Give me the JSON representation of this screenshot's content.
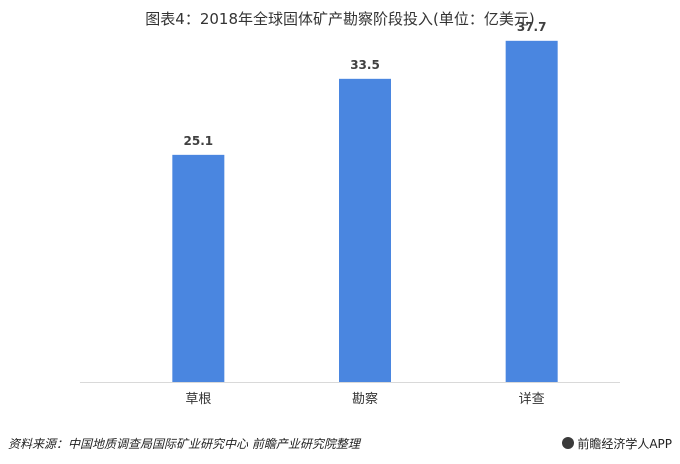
{
  "title": "图表4：2018年全球固体矿产勘察阶段投入(单位：亿美元)",
  "footer": {
    "source": "资料来源：中国地质调查局国际矿业研究中心 前瞻产业研究院整理",
    "brand": "前瞻经济学人APP",
    "brand_icon": "qianzhan-logo-icon"
  },
  "colors": {
    "bar": "#4a86e0",
    "axis": "#d9d9d9"
  },
  "chart_data": {
    "type": "bar",
    "title": "图表4：2018年全球固体矿产勘察阶段投入(单位：亿美元)",
    "categories": [
      "草根",
      "勘察",
      "详查"
    ],
    "values": [
      25.1,
      33.5,
      37.7
    ],
    "data_labels": [
      "25.1",
      "33.5",
      "37.7"
    ],
    "xlabel": "",
    "ylabel": "",
    "ylim": [
      0,
      40
    ],
    "grid": false,
    "legend": "none"
  }
}
